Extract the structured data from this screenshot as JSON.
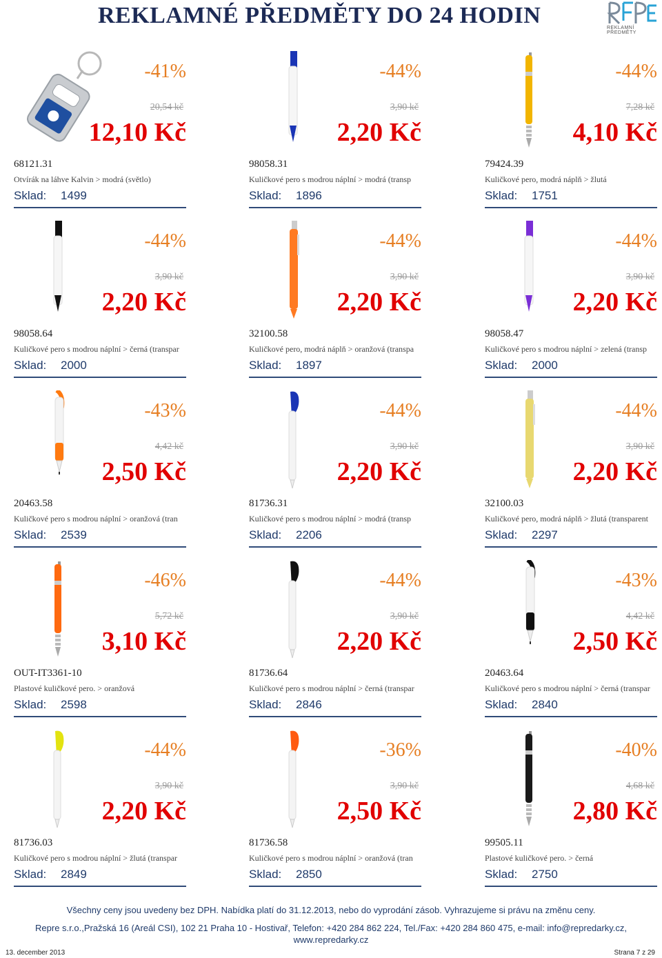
{
  "header": {
    "title": "REKLAMNÉ PŘEDMĚTY DO 24 HODIN",
    "logo_text": "REKLAMNÍ PŘEDMĚTY"
  },
  "products": [
    {
      "discount": "-41%",
      "old_price": "20,54 kč",
      "price": "12,10 Kč",
      "code": "68121.31",
      "desc": "Otvírák na láhve Kalvin >  modrá (světlo)",
      "stock_label": "Sklad:",
      "stock": "1499",
      "img": "keychain",
      "color": "#1f4fa0"
    },
    {
      "discount": "-44%",
      "old_price": "3,90 kč",
      "price": "2,20 Kč",
      "code": "98058.31",
      "desc": "Kuličkové pero s modrou náplní >  modrá (transp",
      "stock_label": "Sklad:",
      "stock": "1896",
      "img": "pen",
      "color": "#1a35b5"
    },
    {
      "discount": "-44%",
      "old_price": "7,28 kč",
      "price": "4,10 Kč",
      "code": "79424.39",
      "desc": "Kuličkové pero, modrá náplň >  žlutá",
      "stock_label": "Sklad:",
      "stock": "1751",
      "img": "metal-pen",
      "color": "#f2b500"
    },
    {
      "discount": "-44%",
      "old_price": "3,90 kč",
      "price": "2,20 Kč",
      "code": "98058.64",
      "desc": "Kuličkové pero s modrou náplní >  černá (transpar",
      "stock_label": "Sklad:",
      "stock": "2000",
      "img": "pen",
      "color": "#111111"
    },
    {
      "discount": "-44%",
      "old_price": "3,90 kč",
      "price": "2,20 Kč",
      "code": "32100.58",
      "desc": "Kuličkové pero, modrá náplň >  oranžová (transpa",
      "stock_label": "Sklad:",
      "stock": "1897",
      "img": "solid-pen",
      "color": "#ff7a22"
    },
    {
      "discount": "-44%",
      "old_price": "3,90 kč",
      "price": "2,20 Kč",
      "code": "98058.47",
      "desc": "Kuličkové pero s modrou náplní >  zelená (transp",
      "stock_label": "Sklad:",
      "stock": "2000",
      "img": "pen",
      "color": "#7a2ed6"
    },
    {
      "discount": "-43%",
      "old_price": "4,42 kč",
      "price": "2,50 Kč",
      "code": "20463.58",
      "desc": "Kuličkové pero s modrou náplní >  oranžová (tran",
      "stock_label": "Sklad:",
      "stock": "2539",
      "img": "grip-pen",
      "color": "#ff7a10"
    },
    {
      "discount": "-44%",
      "old_price": "3,90 kč",
      "price": "2,20 Kč",
      "code": "81736.31",
      "desc": "Kuličkové pero s modrou náplní >  modrá (transp",
      "stock_label": "Sklad:",
      "stock": "2206",
      "img": "clip-pen",
      "color": "#1a35b5"
    },
    {
      "discount": "-44%",
      "old_price": "3,90 kč",
      "price": "2,20 Kč",
      "code": "32100.03",
      "desc": "Kuličkové pero, modrá náplň >  žlutá (transparent",
      "stock_label": "Sklad:",
      "stock": "2297",
      "img": "solid-pen",
      "color": "#e8d870"
    },
    {
      "discount": "-46%",
      "old_price": "5,72 kč",
      "price": "3,10 Kč",
      "code": "OUT-IT3361-10",
      "desc": "Plastové kuličkové pero. >  oranžová",
      "stock_label": "Sklad:",
      "stock": "2598",
      "img": "metal-pen",
      "color": "#ff6a10"
    },
    {
      "discount": "-44%",
      "old_price": "3,90 kč",
      "price": "2,20 Kč",
      "code": "81736.64",
      "desc": "Kuličkové pero s modrou náplní >  černá (transpar",
      "stock_label": "Sklad:",
      "stock": "2846",
      "img": "clip-pen",
      "color": "#111111"
    },
    {
      "discount": "-43%",
      "old_price": "4,42 kč",
      "price": "2,50 Kč",
      "code": "20463.64",
      "desc": "Kuličkové pero s modrou náplní >  černá (transpar",
      "stock_label": "Sklad:",
      "stock": "2840",
      "img": "grip-pen",
      "color": "#111111"
    },
    {
      "discount": "-44%",
      "old_price": "3,90 kč",
      "price": "2,20 Kč",
      "code": "81736.03",
      "desc": "Kuličkové pero s modrou náplní >  žlutá (transpar",
      "stock_label": "Sklad:",
      "stock": "2849",
      "img": "clip-pen",
      "color": "#e3e310"
    },
    {
      "discount": "-36%",
      "old_price": "3,90 kč",
      "price": "2,50 Kč",
      "code": "81736.58",
      "desc": "Kuličkové pero s modrou náplní >  oranžová (tran",
      "stock_label": "Sklad:",
      "stock": "2850",
      "img": "clip-pen",
      "color": "#ff5a10"
    },
    {
      "discount": "-40%",
      "old_price": "4,68 kč",
      "price": "2,80 Kč",
      "code": "99505.11",
      "desc": "Plastové kuličkové pero. >  černá",
      "stock_label": "Sklad:",
      "stock": "2750",
      "img": "metal-pen",
      "color": "#1a1a1a"
    }
  ],
  "footer": {
    "note": "Všechny ceny jsou uvedeny bez DPH. Nabídka platí do 31.12.2013, nebo do vyprodání zásob. Vyhrazujeme si právu na změnu ceny.",
    "company": "Repre s.r.o.,Pražská 16 (Areál CSI), 102 21 Praha 10 - Hostivař, Telefon: +420 284 862 224, Tel./Fax: +420 284 860 475, e-mail: info@repredarky.cz,",
    "web": "www.repredarky.cz",
    "date": "13. december 2013",
    "page": "Strana 7 z 29"
  }
}
